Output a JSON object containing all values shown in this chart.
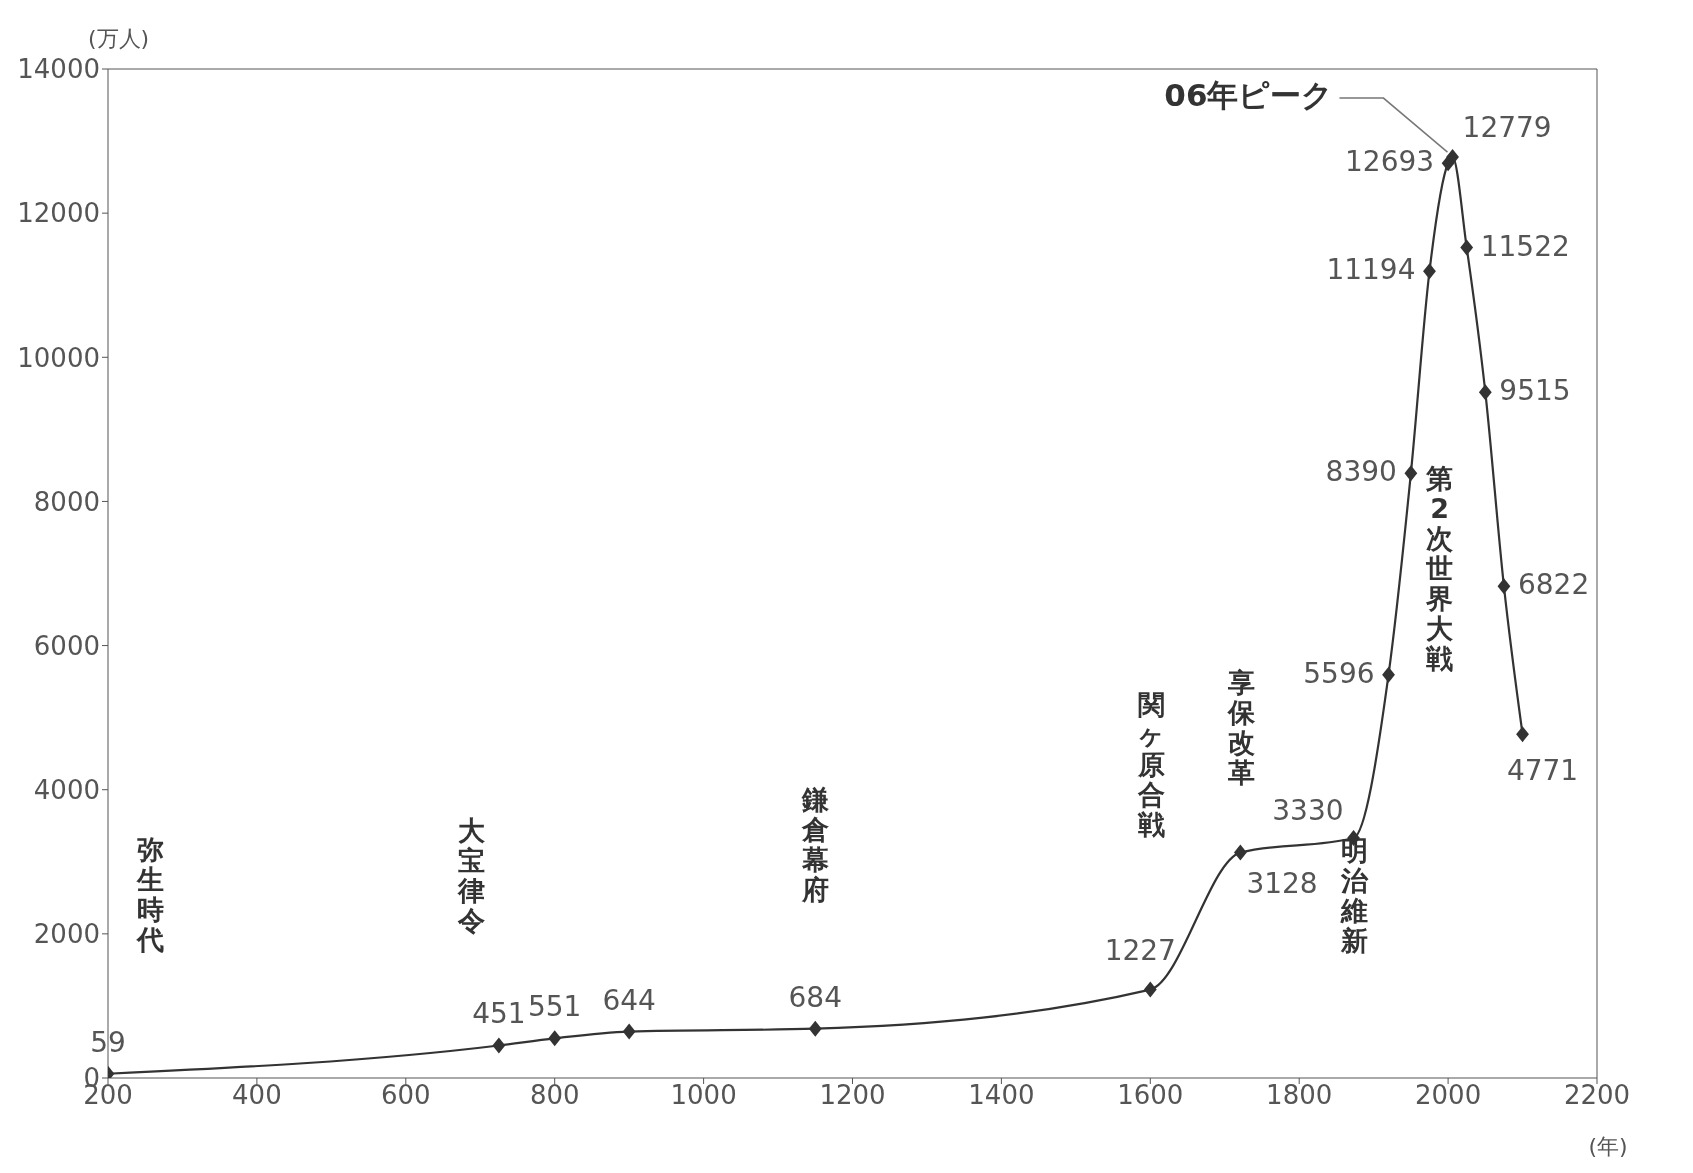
{
  "chart_data": {
    "type": "line",
    "ylabel": "(万人)",
    "xlabel": "(年)",
    "x": [
      200,
      725,
      800,
      900,
      1150,
      1600,
      1721,
      1873,
      1920,
      1950,
      1975,
      2000,
      2006,
      2025,
      2050,
      2075,
      2100
    ],
    "series": [
      {
        "color": "#333333",
        "values": [
          59,
          451,
          551,
          644,
          684,
          1227,
          3128,
          3330,
          5596,
          8390,
          11194,
          12693,
          12779,
          11522,
          9515,
          6822,
          4771
        ]
      }
    ],
    "xlim": [
      200,
      2200
    ],
    "xticks": [
      200,
      400,
      600,
      800,
      1000,
      1200,
      1400,
      1600,
      1800,
      2000,
      2200
    ],
    "ylim": [
      0,
      14000
    ],
    "yticks": [
      0,
      2000,
      4000,
      6000,
      8000,
      10000,
      12000,
      14000
    ],
    "marker": "diamond",
    "line_style": "solid",
    "data_labels": true,
    "annotations": [
      "弥生時代",
      "大宝律令",
      "鎌倉幕府",
      "関ヶ原合戦",
      "享保改革",
      "明治維新",
      "第2次世界大戦",
      {
        "text": "06年ピーク",
        "x": 2006,
        "y": 12779
      }
    ]
  }
}
